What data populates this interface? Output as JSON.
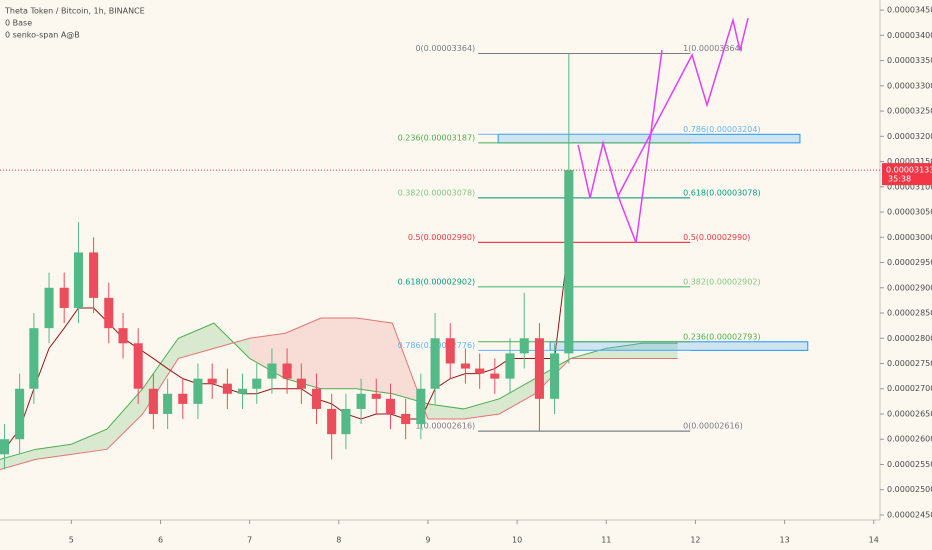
{
  "chart_data": {
    "type": "candlestick",
    "title": "Theta Token / Bitcoin, 1h, BINANCE",
    "legend": [
      "0 Base",
      "0 senko-span A@B"
    ],
    "xlim": [
      4.2,
      14.07
    ],
    "xticks": [
      5,
      6,
      7,
      8,
      9,
      10,
      11,
      12,
      13,
      14
    ],
    "ylim": [
      2.44e-05,
      3.47e-05
    ],
    "yticks": [
      {
        "value": 2.45e-05,
        "label": "0.00002450"
      },
      {
        "value": 2.5e-05,
        "label": "0.00002500"
      },
      {
        "value": 2.55e-05,
        "label": "0.00002550"
      },
      {
        "value": 2.6e-05,
        "label": "0.00002600"
      },
      {
        "value": 2.65e-05,
        "label": "0.00002650"
      },
      {
        "value": 2.7e-05,
        "label": "0.00002700"
      },
      {
        "value": 2.75e-05,
        "label": "0.00002750"
      },
      {
        "value": 2.8e-05,
        "label": "0.00002800"
      },
      {
        "value": 2.85e-05,
        "label": "0.00002850"
      },
      {
        "value": 2.9e-05,
        "label": "0.00002900"
      },
      {
        "value": 2.95e-05,
        "label": "0.00002950"
      },
      {
        "value": 3e-05,
        "label": "0.00003000"
      },
      {
        "value": 3.05e-05,
        "label": "0.00003050"
      },
      {
        "value": 3.1e-05,
        "label": "0.00003100"
      },
      {
        "value": 3.15e-05,
        "label": "0.00003150"
      },
      {
        "value": 3.2e-05,
        "label": "0.00003200"
      },
      {
        "value": 3.25e-05,
        "label": "0.00003250"
      },
      {
        "value": 3.3e-05,
        "label": "0.00003300"
      },
      {
        "value": 3.35e-05,
        "label": "0.00003350"
      },
      {
        "value": 3.4e-05,
        "label": "0.00003400"
      },
      {
        "value": 3.45e-05,
        "label": "0.00003450"
      }
    ],
    "up_color": "#53b987",
    "down_color": "#eb4d5c",
    "x": [
      4.25,
      4.42,
      4.58,
      4.75,
      4.92,
      5.08,
      5.25,
      5.42,
      5.58,
      5.75,
      5.92,
      6.08,
      6.25,
      6.42,
      6.58,
      6.75,
      6.92,
      7.08,
      7.25,
      7.42,
      7.58,
      7.75,
      7.92,
      8.08,
      8.25,
      8.42,
      8.58,
      8.75,
      8.92,
      9.08,
      9.25,
      9.42,
      9.58,
      9.75,
      9.92,
      10.08,
      10.25,
      10.42,
      10.58
    ],
    "open": [
      2.57e-05,
      2.6e-05,
      2.7e-05,
      2.82e-05,
      2.9e-05,
      2.86e-05,
      2.97e-05,
      2.88e-05,
      2.82e-05,
      2.79e-05,
      2.7e-05,
      2.65e-05,
      2.69e-05,
      2.67e-05,
      2.72e-05,
      2.71e-05,
      2.69e-05,
      2.7e-05,
      2.72e-05,
      2.75e-05,
      2.72e-05,
      2.7e-05,
      2.66e-05,
      2.61e-05,
      2.66e-05,
      2.69e-05,
      2.68e-05,
      2.65e-05,
      2.63e-05,
      2.7e-05,
      2.8e-05,
      2.75e-05,
      2.74e-05,
      2.73e-05,
      2.72e-05,
      2.77e-05,
      2.8e-05,
      2.68e-05,
      2.77e-05
    ],
    "high": [
      2.63e-05,
      2.73e-05,
      2.85e-05,
      2.93e-05,
      2.93e-05,
      3.03e-05,
      3e-05,
      2.91e-05,
      2.85e-05,
      2.82e-05,
      2.73e-05,
      2.72e-05,
      2.72e-05,
      2.75e-05,
      2.75e-05,
      2.74e-05,
      2.73e-05,
      2.75e-05,
      2.78e-05,
      2.78e-05,
      2.75e-05,
      2.73e-05,
      2.69e-05,
      2.69e-05,
      2.72e-05,
      2.72e-05,
      2.71e-05,
      2.68e-05,
      2.73e-05,
      2.85e-05,
      2.83e-05,
      2.78e-05,
      2.77e-05,
      2.76e-05,
      2.8e-05,
      2.89e-05,
      2.83e-05,
      2.79e-05,
      3.364e-05
    ],
    "low": [
      2.54e-05,
      2.57e-05,
      2.67e-05,
      2.79e-05,
      2.83e-05,
      2.83e-05,
      2.85e-05,
      2.79e-05,
      2.76e-05,
      2.67e-05,
      2.62e-05,
      2.62e-05,
      2.64e-05,
      2.64e-05,
      2.68e-05,
      2.66e-05,
      2.66e-05,
      2.67e-05,
      2.69e-05,
      2.69e-05,
      2.67e-05,
      2.63e-05,
      2.56e-05,
      2.58e-05,
      2.63e-05,
      2.65e-05,
      2.62e-05,
      2.6e-05,
      2.6e-05,
      2.67e-05,
      2.72e-05,
      2.71e-05,
      2.7e-05,
      2.69e-05,
      2.69e-05,
      2.74e-05,
      2.616e-05,
      2.65e-05,
      2.75e-05
    ],
    "close": [
      2.6e-05,
      2.7e-05,
      2.82e-05,
      2.9e-05,
      2.86e-05,
      2.97e-05,
      2.88e-05,
      2.82e-05,
      2.79e-05,
      2.7e-05,
      2.65e-05,
      2.69e-05,
      2.67e-05,
      2.72e-05,
      2.71e-05,
      2.69e-05,
      2.7e-05,
      2.72e-05,
      2.75e-05,
      2.72e-05,
      2.7e-05,
      2.66e-05,
      2.61e-05,
      2.66e-05,
      2.69e-05,
      2.68e-05,
      2.65e-05,
      2.63e-05,
      2.7e-05,
      2.8e-05,
      2.75e-05,
      2.74e-05,
      2.73e-05,
      2.72e-05,
      2.77e-05,
      2.8e-05,
      2.68e-05,
      2.77e-05,
      3.133e-05
    ],
    "base": {
      "color": "#991515",
      "values": [
        2.58e-05,
        2.62e-05,
        2.7e-05,
        2.78e-05,
        2.82e-05,
        2.86e-05,
        2.86e-05,
        2.83e-05,
        2.8e-05,
        2.78e-05,
        2.76e-05,
        2.74e-05,
        2.72e-05,
        2.71e-05,
        2.71e-05,
        2.7e-05,
        2.69e-05,
        2.69e-05,
        2.7e-05,
        2.7e-05,
        2.7e-05,
        2.68e-05,
        2.67e-05,
        2.65e-05,
        2.64e-05,
        2.65e-05,
        2.65e-05,
        2.64e-05,
        2.64e-05,
        2.7e-05,
        2.72e-05,
        2.73e-05,
        2.73e-05,
        2.74e-05,
        2.76e-05,
        2.76e-05,
        2.76e-05,
        2.76e-05,
        2.99e-05
      ]
    },
    "span_x": [
      4.2,
      4.6,
      5.0,
      5.4,
      5.8,
      6.2,
      6.6,
      7.0,
      7.4,
      7.8,
      8.2,
      8.6,
      9.0,
      9.4,
      9.8,
      10.2,
      10.6,
      11.0,
      11.4,
      11.8
    ],
    "span_a": {
      "color": "#4caf50",
      "values": [
        2.56e-05,
        2.58e-05,
        2.59e-05,
        2.62e-05,
        2.7e-05,
        2.8e-05,
        2.83e-05,
        2.76e-05,
        2.72e-05,
        2.7e-05,
        2.7e-05,
        2.69e-05,
        2.67e-05,
        2.66e-05,
        2.68e-05,
        2.72e-05,
        2.76e-05,
        2.78e-05,
        2.79e-05,
        2.79e-05
      ]
    },
    "span_b": {
      "color": "#e57373",
      "values": [
        2.54e-05,
        2.56e-05,
        2.57e-05,
        2.58e-05,
        2.65e-05,
        2.76e-05,
        2.78e-05,
        2.8e-05,
        2.81e-05,
        2.84e-05,
        2.84e-05,
        2.83e-05,
        2.64e-05,
        2.64e-05,
        2.65e-05,
        2.69e-05,
        2.76e-05,
        2.76e-05,
        2.76e-05,
        2.76e-05
      ]
    },
    "fib": {
      "x": [
        9.563,
        11.94
      ],
      "left": [
        {
          "value": 3.364e-05,
          "label": "0(0.00003364)",
          "color": "#787b86"
        },
        {
          "value": 3.187e-05,
          "label": "0.236(0.00003187)",
          "color": "#4caf50"
        },
        {
          "value": 3.078e-05,
          "label": "0.382(0.00003078)",
          "color": "#81c784"
        },
        {
          "value": 2.99e-05,
          "label": "0.5(0.00002990)",
          "color": "#f23645"
        },
        {
          "value": 2.902e-05,
          "label": "0.618(0.00002902)",
          "color": "#089981"
        },
        {
          "value": 2.776e-05,
          "label": "0.786(0.00002776)",
          "color": "#64b5f6"
        },
        {
          "value": 2.616e-05,
          "label": "1(0.00002616)",
          "color": "#787b86"
        }
      ],
      "right": [
        {
          "value": 3.364e-05,
          "label": "1(0.00003364)",
          "color": "#787b86"
        },
        {
          "value": 3.204e-05,
          "label": "0.786(0.00003204)",
          "color": "#64b5f6"
        },
        {
          "value": 3.078e-05,
          "label": "0.618(0.00003078)",
          "color": "#089981"
        },
        {
          "value": 2.99e-05,
          "label": "0.5(0.00002990)",
          "color": "#f23645"
        },
        {
          "value": 2.902e-05,
          "label": "0.382(0.00002902)",
          "color": "#81c784"
        },
        {
          "value": 2.793e-05,
          "label": "0.236(0.00002793)",
          "color": "#4caf50"
        },
        {
          "value": 2.616e-05,
          "label": "0(0.00002616)",
          "color": "#787b86"
        }
      ]
    },
    "zones": [
      {
        "x": [
          9.787,
          13.172
        ],
        "range": [
          3.187e-05,
          3.204e-05
        ]
      },
      {
        "x": [
          10.37,
          13.26
        ],
        "range": [
          2.776e-05,
          2.793e-05
        ]
      }
    ],
    "projection": {
      "color": "#e040fb",
      "paths": [
        {
          "x": [
            10.684,
            10.818,
            10.964,
            11.132,
            11.334,
            11.625
          ],
          "y": [
            3.183e-05,
            3.078e-05,
            3.187e-05,
            3.082e-05,
            2.989e-05,
            3.371e-05
          ]
        },
        {
          "x": [
            11.132,
            11.962,
            12.13,
            12.421,
            12.5,
            12.59
          ],
          "y": [
            3.082e-05,
            3.361e-05,
            3.262e-05,
            3.43e-05,
            3.37e-05,
            3.434e-05
          ]
        }
      ]
    },
    "current_price": {
      "value": 3.133e-05,
      "label": "0.00003133",
      "countdown": "35:38",
      "color": "#f23645"
    }
  }
}
